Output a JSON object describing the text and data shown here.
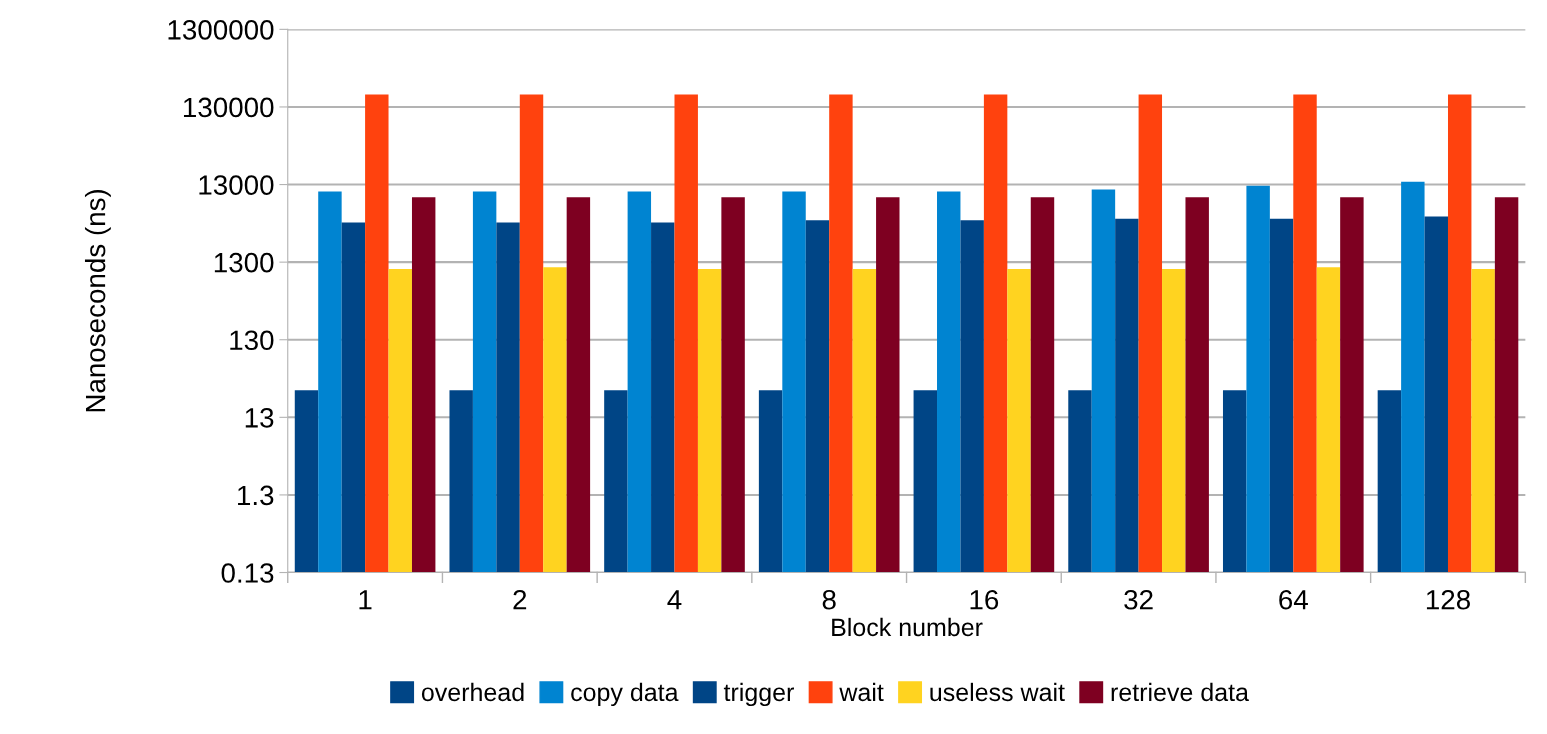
{
  "chart_data": {
    "type": "bar",
    "xlabel": "Block number",
    "ylabel": "Nanoseconds (ns)",
    "categories": [
      "1",
      "2",
      "4",
      "8",
      "16",
      "32",
      "64",
      "128"
    ],
    "log": true,
    "ylim": [
      0.13,
      1300000
    ],
    "yticks": [
      0.13,
      1.3,
      13,
      130,
      1300,
      13000,
      130000,
      1300000
    ],
    "grid": "y",
    "legend": "bottom",
    "series": [
      {
        "name": "overhead",
        "color": "#004586",
        "values": [
          29,
          29,
          29,
          29,
          29,
          29,
          29,
          29
        ]
      },
      {
        "name": "copy data",
        "color": "#0084d1",
        "values": [
          10600,
          10600,
          10600,
          10600,
          10600,
          11200,
          12500,
          14100
        ]
      },
      {
        "name": "trigger",
        "color": "#004586",
        "values": [
          4200,
          4200,
          4200,
          4500,
          4500,
          4700,
          4700,
          5050
        ]
      },
      {
        "name": "wait",
        "color": "#ff420e",
        "values": [
          188000,
          188000,
          188000,
          188000,
          188000,
          188000,
          188000,
          188000
        ]
      },
      {
        "name": "useless wait",
        "color": "#ffd320",
        "values": [
          1060,
          1120,
          1060,
          1060,
          1060,
          1060,
          1120,
          1060
        ]
      },
      {
        "name": "retrieve data",
        "color": "#7e0021",
        "values": [
          8900,
          8900,
          8900,
          8900,
          8900,
          8900,
          8900,
          8900
        ]
      }
    ]
  }
}
